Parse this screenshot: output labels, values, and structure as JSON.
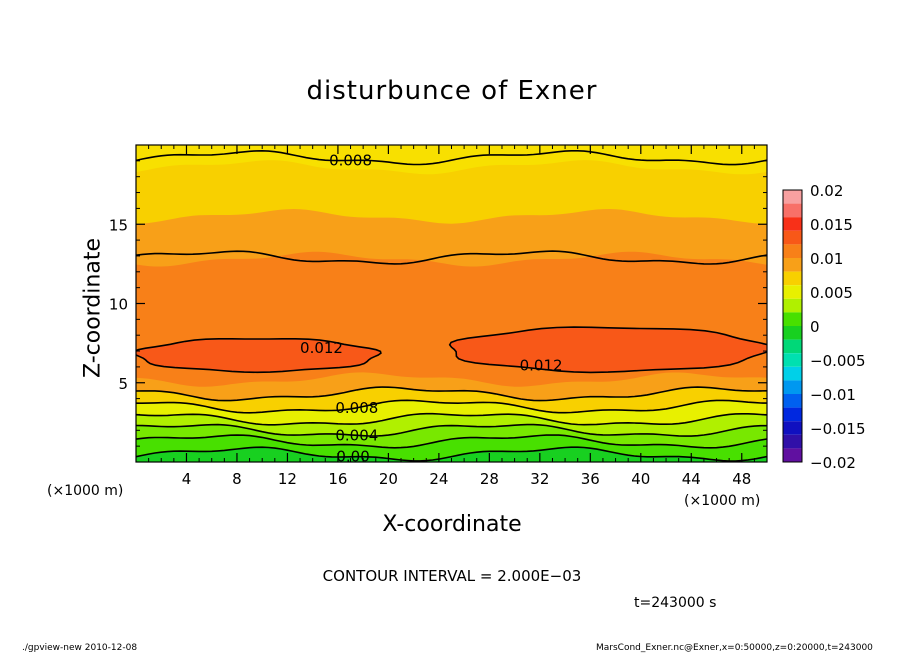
{
  "chart_data": {
    "type": "heatmap",
    "title": "disturbunce of Exner",
    "xlabel": "X-coordinate",
    "ylabel": "Z-coordinate",
    "x_unit": "(×1000 m)",
    "xlim": [
      0,
      50
    ],
    "ylim": [
      0,
      20
    ],
    "x_ticks": [
      4,
      8,
      12,
      16,
      20,
      24,
      28,
      32,
      36,
      40,
      44,
      48
    ],
    "y_ticks": [
      5,
      10,
      15
    ],
    "colorbar": {
      "min": -0.02,
      "max": 0.02,
      "tick_values": [
        0.02,
        0.015,
        0.01,
        0.005,
        0,
        -0.005,
        -0.01,
        -0.015,
        -0.02
      ],
      "tick_labels": [
        "0.02",
        "0.015",
        "0.01",
        "0.005",
        "0",
        "−0.005",
        "−0.01",
        "−0.015",
        "−0.02"
      ],
      "levels": [
        {
          "from": 0.018,
          "to": 0.02,
          "color": "#f8a0a0"
        },
        {
          "from": 0.016,
          "to": 0.018,
          "color": "#f87068"
        },
        {
          "from": 0.014,
          "to": 0.016,
          "color": "#f83018"
        },
        {
          "from": 0.012,
          "to": 0.014,
          "color": "#f85818"
        },
        {
          "from": 0.01,
          "to": 0.012,
          "color": "#f88018"
        },
        {
          "from": 0.008,
          "to": 0.01,
          "color": "#f8a018"
        },
        {
          "from": 0.006,
          "to": 0.008,
          "color": "#f8d000"
        },
        {
          "from": 0.004,
          "to": 0.006,
          "color": "#e8f000"
        },
        {
          "from": 0.002,
          "to": 0.004,
          "color": "#b0f000"
        },
        {
          "from": 0.0,
          "to": 0.002,
          "color": "#48e000"
        },
        {
          "from": -0.002,
          "to": 0.0,
          "color": "#18d020"
        },
        {
          "from": -0.004,
          "to": -0.002,
          "color": "#00d878"
        },
        {
          "from": -0.006,
          "to": -0.004,
          "color": "#00e0b0"
        },
        {
          "from": -0.008,
          "to": -0.006,
          "color": "#00d0e8"
        },
        {
          "from": -0.01,
          "to": -0.008,
          "color": "#0098f0"
        },
        {
          "from": -0.012,
          "to": -0.01,
          "color": "#0060f0"
        },
        {
          "from": -0.014,
          "to": -0.012,
          "color": "#0028e0"
        },
        {
          "from": -0.016,
          "to": -0.014,
          "color": "#1010c0"
        },
        {
          "from": -0.018,
          "to": -0.016,
          "color": "#3010a8"
        },
        {
          "from": -0.02,
          "to": -0.018,
          "color": "#6010a0"
        }
      ]
    },
    "field_bands": [
      {
        "z_bottom": 0.0,
        "z_top": 0.5,
        "value": 0.001,
        "color": "#18d020"
      },
      {
        "z_bottom": 0.5,
        "z_top": 1.3,
        "value": 0.002,
        "color": "#48e000"
      },
      {
        "z_bottom": 1.3,
        "z_top": 2.0,
        "value": 0.003,
        "color": "#78e800"
      },
      {
        "z_bottom": 2.0,
        "z_top": 2.7,
        "value": 0.004,
        "color": "#b0f000"
      },
      {
        "z_bottom": 2.7,
        "z_top": 3.5,
        "value": 0.005,
        "color": "#e8f000"
      },
      {
        "z_bottom": 3.5,
        "z_top": 4.3,
        "value": 0.007,
        "color": "#f8d000"
      },
      {
        "z_bottom": 4.3,
        "z_top": 5.2,
        "value": 0.009,
        "color": "#f8a018"
      },
      {
        "z_bottom": 5.2,
        "z_top": 10.0,
        "value": 0.011,
        "color": "#f88018"
      },
      {
        "z_bottom": 10.0,
        "z_top": 12.8,
        "value": 0.0105,
        "color": "#f88018"
      },
      {
        "z_bottom": 12.8,
        "z_top": 15.5,
        "value": 0.009,
        "color": "#f8a018"
      },
      {
        "z_bottom": 15.5,
        "z_top": 18.6,
        "value": 0.007,
        "color": "#f8d000"
      },
      {
        "z_bottom": 18.6,
        "z_top": 20.0,
        "value": 0.006,
        "color": "#f8e000"
      }
    ],
    "contours": [
      {
        "value": 0.0,
        "label": "0.00",
        "z_mean": 0.5,
        "label_x": 17.2
      },
      {
        "value": 0.002,
        "z_mean": 1.3
      },
      {
        "value": 0.004,
        "label": "0.004",
        "z_mean": 2.0,
        "label_x": 17.5
      },
      {
        "value": 0.006,
        "z_mean": 2.7
      },
      {
        "value": 0.008,
        "label": "0.008",
        "z_mean": 3.5,
        "label_x": 17.5
      },
      {
        "value": 0.01,
        "z_mean": 4.3
      },
      {
        "value": 0.008,
        "label": "0.008",
        "z_mean": 19.2,
        "label_x": 17.0
      },
      {
        "value": 0.01,
        "z_mean": 12.9
      }
    ],
    "highs": [
      {
        "value": 0.012,
        "label": "0.012",
        "x_range": [
          0,
          19.2
        ],
        "z_range": [
          5.7,
          7.8
        ],
        "label_x": 14.7,
        "label_z": 7.2
      },
      {
        "value": 0.012,
        "label": "0.012",
        "x_range": [
          24.8,
          50
        ],
        "z_range": [
          5.7,
          8.5
        ],
        "label_x": 32.1,
        "label_z": 6.1
      }
    ],
    "contour_interval_text": "CONTOUR INTERVAL = 2.000E−03",
    "time_text": "t=243000 s"
  },
  "footer": {
    "left": "./gpview-new  2010-12-08",
    "right": "MarsCond_Exner.nc@Exner,x=0:50000,z=0:20000,t=243000"
  }
}
